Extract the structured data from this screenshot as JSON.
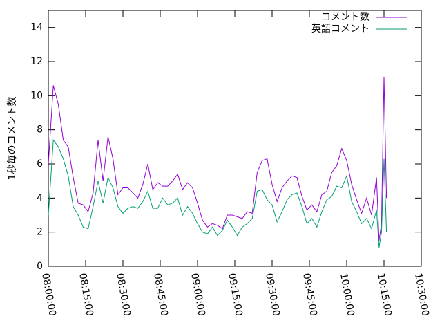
{
  "chart_data": {
    "type": "line",
    "y_label": "1秒毎のコメント数",
    "x": [
      "08:00:00",
      "08:02:00",
      "08:04:00",
      "08:06:00",
      "08:08:00",
      "08:10:00",
      "08:12:00",
      "08:14:00",
      "08:16:00",
      "08:18:00",
      "08:20:00",
      "08:22:00",
      "08:24:00",
      "08:26:00",
      "08:28:00",
      "08:30:00",
      "08:32:00",
      "08:34:00",
      "08:36:00",
      "08:38:00",
      "08:40:00",
      "08:42:00",
      "08:44:00",
      "08:46:00",
      "08:48:00",
      "08:50:00",
      "08:52:00",
      "08:54:00",
      "08:56:00",
      "08:58:00",
      "09:00:00",
      "09:02:00",
      "09:04:00",
      "09:06:00",
      "09:08:00",
      "09:10:00",
      "09:12:00",
      "09:14:00",
      "09:16:00",
      "09:18:00",
      "09:20:00",
      "09:22:00",
      "09:24:00",
      "09:26:00",
      "09:28:00",
      "09:30:00",
      "09:32:00",
      "09:34:00",
      "09:36:00",
      "09:38:00",
      "09:40:00",
      "09:42:00",
      "09:44:00",
      "09:46:00",
      "09:48:00",
      "09:50:00",
      "09:52:00",
      "09:54:00",
      "09:56:00",
      "09:58:00",
      "10:00:00",
      "10:02:00",
      "10:04:00",
      "10:06:00",
      "10:08:00",
      "10:10:00",
      "10:12:00",
      "10:13:00",
      "10:14:00",
      "10:15:00",
      "10:16:00"
    ],
    "series": [
      {
        "name": "コメント数",
        "color": "#9400d3",
        "values": [
          6.0,
          10.6,
          9.5,
          7.4,
          7.0,
          5.2,
          3.7,
          3.6,
          3.2,
          4.3,
          7.4,
          5.0,
          7.6,
          6.3,
          4.2,
          4.6,
          4.6,
          4.3,
          4.0,
          4.8,
          6.0,
          4.5,
          4.9,
          4.7,
          4.7,
          5.0,
          5.4,
          4.5,
          4.9,
          4.6,
          3.7,
          2.7,
          2.3,
          2.5,
          2.4,
          2.2,
          3.0,
          3.0,
          2.9,
          2.8,
          3.2,
          3.1,
          5.5,
          6.2,
          6.3,
          4.8,
          3.8,
          4.6,
          5.0,
          5.3,
          5.2,
          4.1,
          3.3,
          3.6,
          3.2,
          4.2,
          4.4,
          5.5,
          5.9,
          6.9,
          6.2,
          4.8,
          3.9,
          3.1,
          4.0,
          3.0,
          5.2,
          1.5,
          2.5,
          11.1,
          4.0
        ]
      },
      {
        "name": "英語コメント",
        "color": "#009e73",
        "values": [
          3.0,
          7.4,
          7.0,
          6.3,
          5.3,
          3.5,
          3.0,
          2.3,
          2.2,
          3.5,
          5.0,
          3.7,
          5.2,
          4.6,
          3.5,
          3.1,
          3.4,
          3.5,
          3.4,
          3.8,
          4.4,
          3.4,
          3.4,
          4.0,
          3.6,
          3.7,
          4.0,
          3.0,
          3.5,
          3.1,
          2.5,
          2.0,
          1.9,
          2.3,
          1.8,
          2.1,
          2.7,
          2.3,
          1.8,
          2.3,
          2.5,
          2.8,
          4.4,
          4.5,
          3.9,
          3.6,
          2.6,
          3.2,
          3.9,
          4.2,
          4.3,
          3.5,
          2.5,
          2.8,
          2.3,
          3.2,
          3.9,
          4.1,
          4.7,
          4.6,
          5.3,
          3.8,
          3.2,
          2.5,
          2.8,
          2.2,
          3.3,
          1.1,
          2.0,
          6.3,
          2.0
        ]
      }
    ],
    "xlim": [
      "08:00:00",
      "10:30:00"
    ],
    "xticks": [
      "08:00:00",
      "08:15:00",
      "08:30:00",
      "08:45:00",
      "09:00:00",
      "09:15:00",
      "09:30:00",
      "09:45:00",
      "10:00:00",
      "10:15:00",
      "10:30:00"
    ],
    "ylim": [
      0,
      15
    ],
    "yticks": [
      0,
      2,
      4,
      6,
      8,
      10,
      12,
      14
    ],
    "legend": "top-right"
  }
}
